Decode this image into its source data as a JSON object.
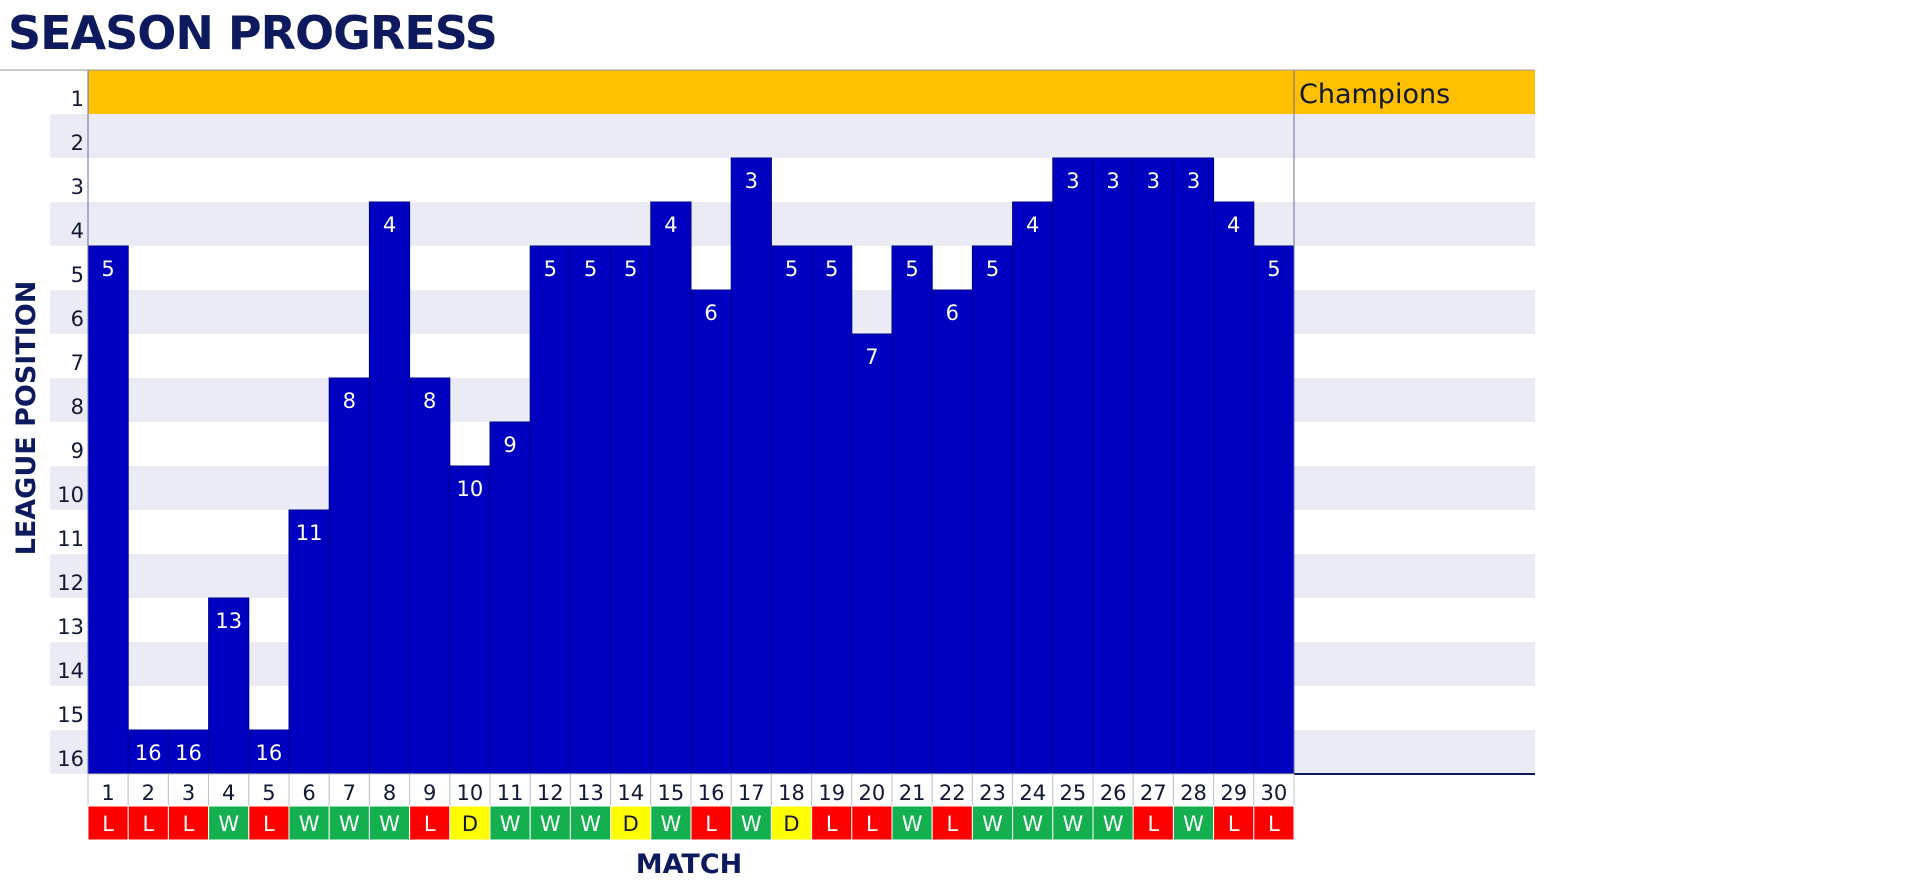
{
  "chart_data": {
    "type": "bar",
    "title": "SEASON PROGRESS",
    "xlabel": "MATCH",
    "ylabel": "LEAGUE POSITION",
    "y_axis": {
      "min": 1,
      "max": 16,
      "inverted": true,
      "ticks": [
        1,
        2,
        3,
        4,
        5,
        6,
        7,
        8,
        9,
        10,
        11,
        12,
        13,
        14,
        15,
        16
      ]
    },
    "categories": [
      1,
      2,
      3,
      4,
      5,
      6,
      7,
      8,
      9,
      10,
      11,
      12,
      13,
      14,
      15,
      16,
      17,
      18,
      19,
      20,
      21,
      22,
      23,
      24,
      25,
      26,
      27,
      28,
      29,
      30
    ],
    "values": [
      5,
      16,
      16,
      13,
      16,
      11,
      8,
      4,
      8,
      10,
      9,
      5,
      5,
      5,
      4,
      6,
      3,
      5,
      5,
      7,
      5,
      6,
      5,
      4,
      3,
      3,
      3,
      3,
      4,
      5
    ],
    "results": [
      "L",
      "L",
      "L",
      "W",
      "L",
      "W",
      "W",
      "W",
      "L",
      "D",
      "W",
      "W",
      "W",
      "D",
      "W",
      "L",
      "W",
      "D",
      "L",
      "L",
      "W",
      "L",
      "W",
      "W",
      "W",
      "W",
      "L",
      "W",
      "L",
      "L"
    ],
    "zone": {
      "label": "Champions",
      "position": 1,
      "color": "#ffc000"
    },
    "colors": {
      "bar": "#0000c0",
      "bar_border": "#00008a",
      "band_alt": "#ebebf5",
      "result_W": "#14b050",
      "result_L": "#ff0000",
      "result_D": "#ffff00",
      "text_dark": "#0d1b5e"
    },
    "grid": false,
    "legend": "none"
  }
}
